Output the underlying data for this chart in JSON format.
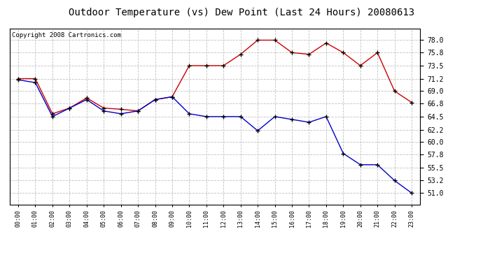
{
  "title": "Outdoor Temperature (vs) Dew Point (Last 24 Hours) 20080613",
  "copyright": "Copyright 2008 Cartronics.com",
  "x_labels": [
    "00:00",
    "01:00",
    "02:00",
    "03:00",
    "04:00",
    "05:00",
    "06:00",
    "07:00",
    "08:00",
    "09:00",
    "10:00",
    "11:00",
    "12:00",
    "13:00",
    "14:00",
    "15:00",
    "16:00",
    "17:00",
    "18:00",
    "19:00",
    "20:00",
    "21:00",
    "22:00",
    "23:00"
  ],
  "temp_data": [
    71.2,
    71.2,
    65.0,
    66.0,
    67.8,
    66.0,
    65.8,
    65.5,
    67.5,
    68.0,
    73.5,
    73.5,
    73.5,
    75.5,
    78.0,
    78.0,
    75.8,
    75.5,
    77.5,
    75.8,
    73.5,
    75.8,
    69.0,
    67.0
  ],
  "dew_data": [
    71.0,
    70.5,
    64.5,
    66.0,
    67.5,
    65.5,
    65.0,
    65.5,
    67.5,
    68.0,
    65.0,
    64.5,
    64.5,
    64.5,
    62.0,
    64.5,
    64.0,
    63.5,
    64.5,
    58.0,
    56.0,
    56.0,
    53.2,
    51.0
  ],
  "ylim": [
    49.0,
    80.0
  ],
  "yticks": [
    51.0,
    53.2,
    55.5,
    57.8,
    60.0,
    62.2,
    64.5,
    66.8,
    69.0,
    71.2,
    73.5,
    75.8,
    78.0
  ],
  "temp_color": "#cc0000",
  "dew_color": "#0000cc",
  "bg_color": "#ffffff",
  "plot_bg_color": "#ffffff",
  "grid_color": "#c0c0c0",
  "title_color": "#000000",
  "title_fontsize": 10,
  "copyright_fontsize": 6.5
}
